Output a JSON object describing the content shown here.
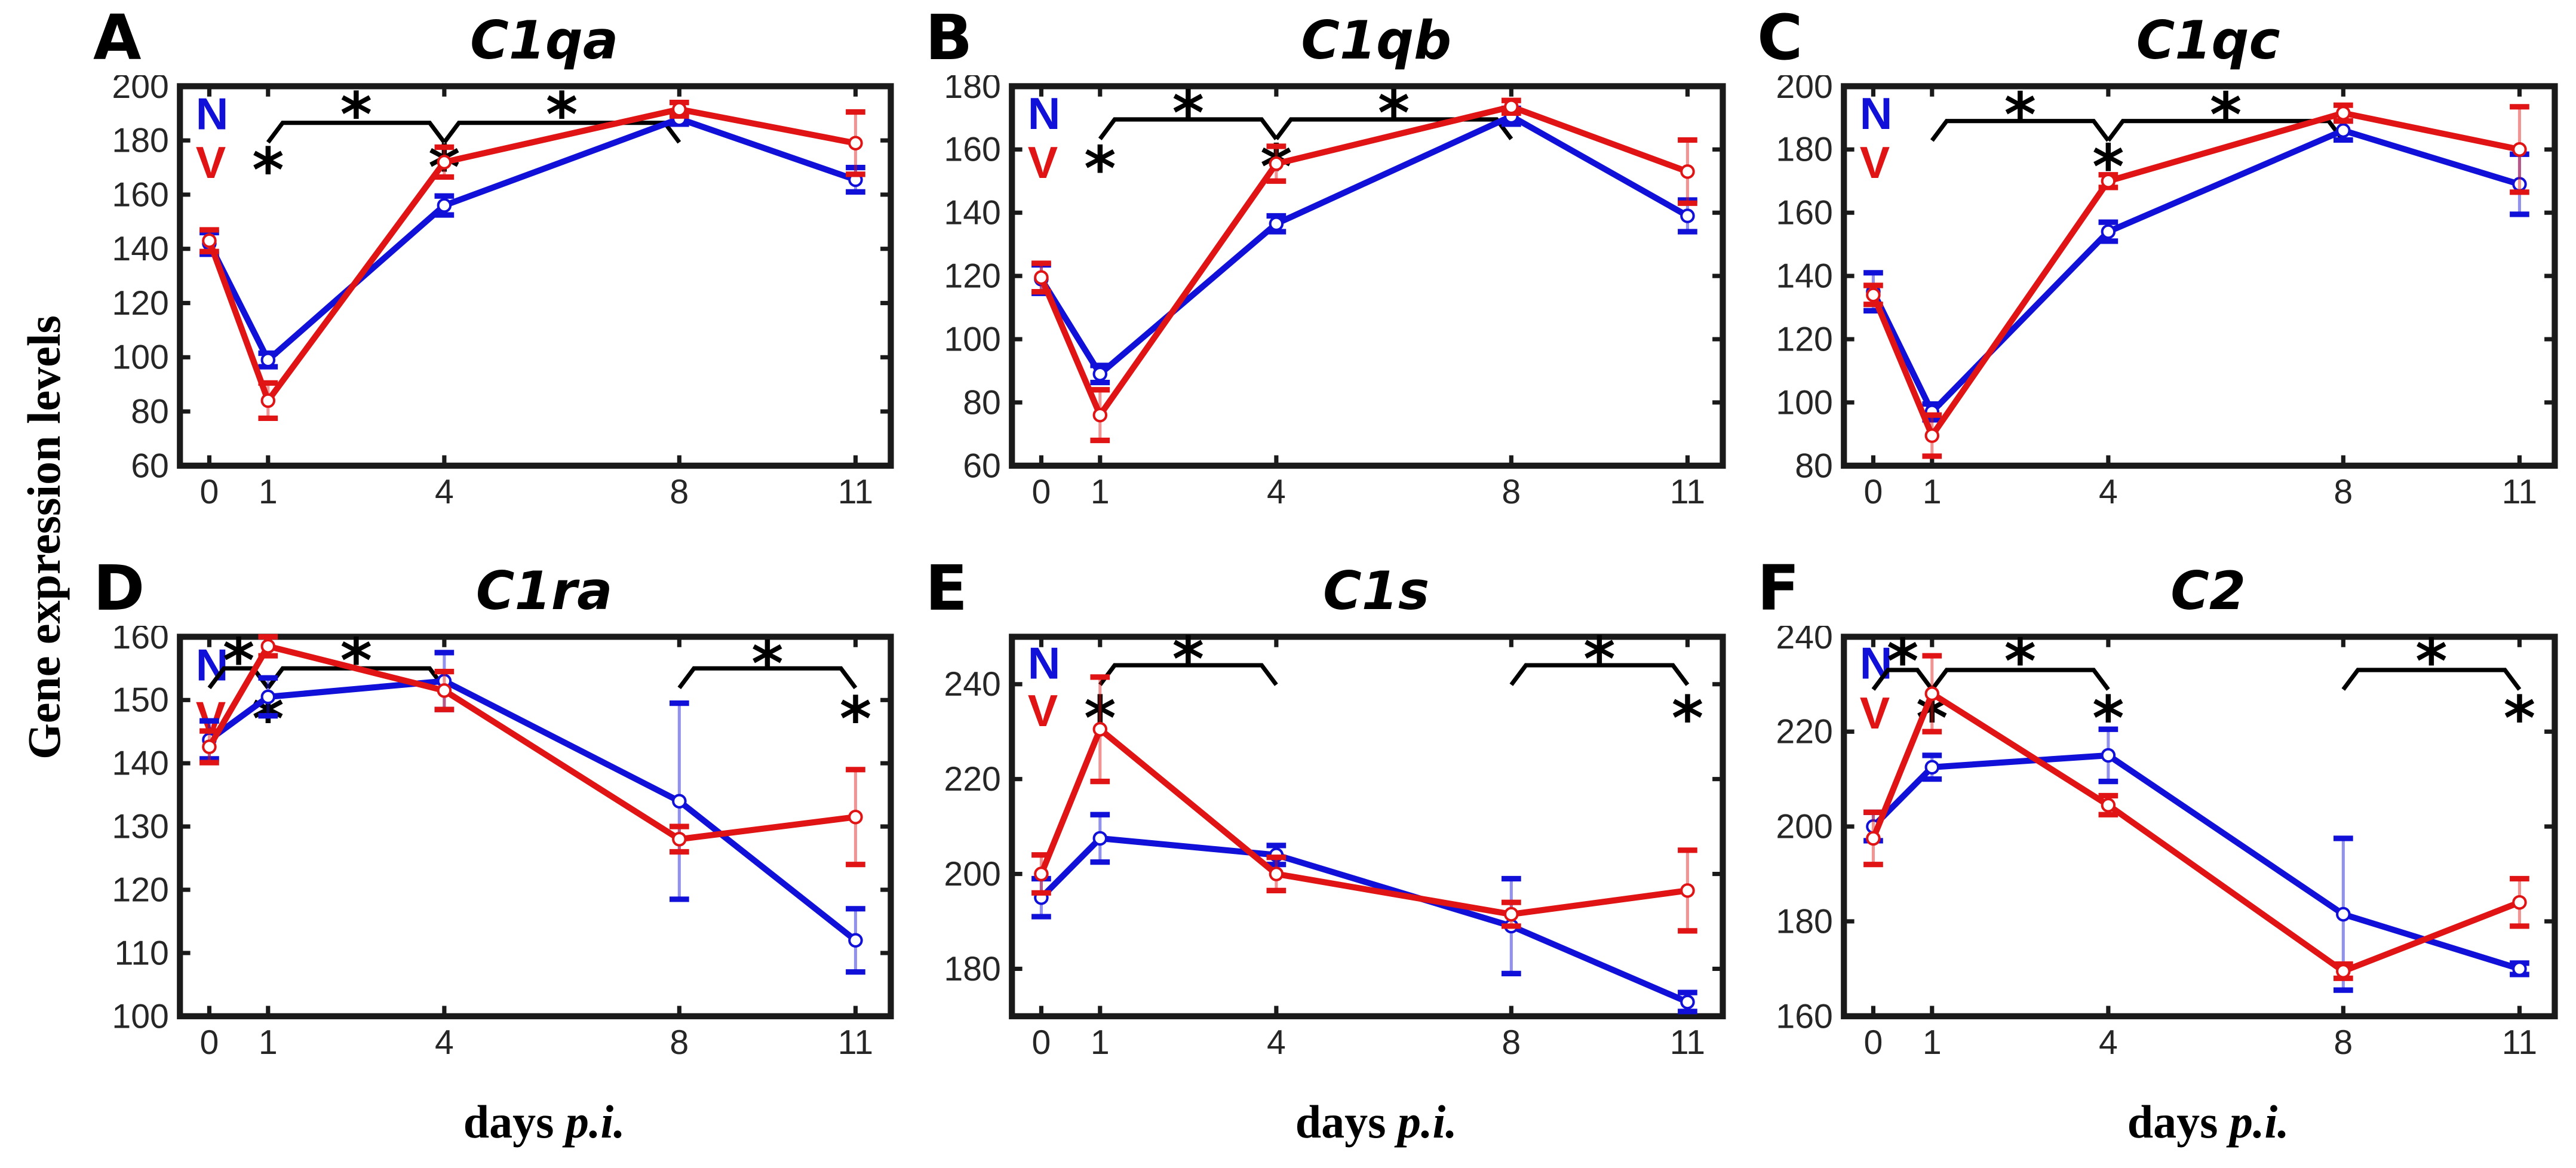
{
  "figure": {
    "ylabel": "Gene expression levels",
    "xlabel_word": "days",
    "xlabel_italic": "p.i.",
    "colors": {
      "N": "#1010d8",
      "V": "#e01414",
      "axis": "#1a1a1a",
      "tick_label": "#262626",
      "star": "#000000"
    }
  },
  "legend": {
    "entries": [
      {
        "label": "N",
        "color": "#1010d8"
      },
      {
        "label": "V",
        "color": "#e01414"
      }
    ]
  },
  "chart_data": [
    {
      "type": "line",
      "letter": "A",
      "title": "C1qa",
      "x": [
        0,
        1,
        4,
        8,
        11
      ],
      "xticklabels": [
        "0",
        "1",
        "4",
        "8",
        "11"
      ],
      "xlim": [
        -0.5,
        11.6
      ],
      "ylim": [
        60,
        200
      ],
      "yticks": [
        60,
        80,
        100,
        120,
        140,
        160,
        180,
        200
      ],
      "series": [
        {
          "name": "N",
          "color": "#1010d8",
          "values": [
            142,
            99,
            156,
            188,
            165.5
          ],
          "err": [
            4,
            2.5,
            3.5,
            2,
            4.5
          ]
        },
        {
          "name": "V",
          "color": "#e01414",
          "values": [
            143,
            84,
            172,
            191.5,
            179
          ],
          "err": [
            4,
            6.5,
            5.5,
            2.5,
            11.5
          ]
        }
      ],
      "sig_brackets": [
        {
          "x1": 1,
          "x2": 4,
          "y": 186.5
        },
        {
          "x1": 4,
          "x2": 8,
          "y": 186.5
        }
      ],
      "stars": [
        {
          "x": 2.5,
          "y": 192.5
        },
        {
          "x": 6,
          "y": 192.5
        },
        {
          "x": 1,
          "y": 172
        },
        {
          "x": 4,
          "y": 173
        }
      ],
      "legend_y": [
        190,
        172
      ],
      "show_xlabel": false
    },
    {
      "type": "line",
      "letter": "B",
      "title": "C1qb",
      "x": [
        0,
        1,
        4,
        8,
        11
      ],
      "xticklabels": [
        "0",
        "1",
        "4",
        "8",
        "11"
      ],
      "xlim": [
        -0.5,
        11.6
      ],
      "ylim": [
        60,
        180
      ],
      "yticks": [
        60,
        80,
        100,
        120,
        140,
        160,
        180
      ],
      "series": [
        {
          "name": "N",
          "color": "#1010d8",
          "values": [
            119,
            89,
            136.5,
            170.5,
            139
          ],
          "err": [
            4.5,
            2.7,
            2.5,
            2.5,
            5
          ]
        },
        {
          "name": "V",
          "color": "#e01414",
          "values": [
            119.5,
            76,
            155.5,
            173.5,
            153
          ],
          "err": [
            4.5,
            8,
            5.5,
            2,
            10
          ]
        }
      ],
      "sig_brackets": [
        {
          "x1": 1,
          "x2": 4,
          "y": 169.5
        },
        {
          "x1": 4,
          "x2": 8,
          "y": 169.5
        }
      ],
      "stars": [
        {
          "x": 2.5,
          "y": 174
        },
        {
          "x": 6,
          "y": 174
        },
        {
          "x": 1,
          "y": 156.5
        },
        {
          "x": 4,
          "y": 157
        }
      ],
      "legend_y": [
        171.5,
        156
      ],
      "show_xlabel": false
    },
    {
      "type": "line",
      "letter": "C",
      "title": "C1qc",
      "x": [
        0,
        1,
        4,
        8,
        11
      ],
      "xticklabels": [
        "0",
        "1",
        "4",
        "8",
        "11"
      ],
      "xlim": [
        -0.5,
        11.6
      ],
      "ylim": [
        80,
        200
      ],
      "yticks": [
        80,
        100,
        120,
        140,
        160,
        180,
        200
      ],
      "series": [
        {
          "name": "N",
          "color": "#1010d8",
          "values": [
            135,
            97,
            154,
            186,
            169
          ],
          "err": [
            6,
            2.5,
            3,
            3,
            9.5
          ]
        },
        {
          "name": "V",
          "color": "#e01414",
          "values": [
            134,
            89.5,
            170,
            191.5,
            180
          ],
          "err": [
            3,
            6.5,
            2,
            2.5,
            13.5
          ]
        }
      ],
      "sig_brackets": [
        {
          "x1": 1,
          "x2": 4,
          "y": 189
        },
        {
          "x1": 4,
          "x2": 8,
          "y": 189
        }
      ],
      "stars": [
        {
          "x": 2.5,
          "y": 193.5
        },
        {
          "x": 6,
          "y": 193.5
        },
        {
          "x": 4,
          "y": 177
        }
      ],
      "legend_y": [
        191.5,
        176
      ],
      "show_xlabel": false
    },
    {
      "type": "line",
      "letter": "D",
      "title": "C1ra",
      "x": [
        0,
        1,
        4,
        8,
        11
      ],
      "xticklabels": [
        "0",
        "1",
        "4",
        "8",
        "11"
      ],
      "xlim": [
        -0.5,
        11.6
      ],
      "ylim": [
        100,
        160
      ],
      "yticks": [
        100,
        110,
        120,
        130,
        140,
        150,
        160
      ],
      "series": [
        {
          "name": "N",
          "color": "#1010d8",
          "values": [
            143.7,
            150.5,
            153,
            134,
            112
          ],
          "err": [
            3,
            3,
            4.5,
            15.5,
            5
          ]
        },
        {
          "name": "V",
          "color": "#e01414",
          "values": [
            142.6,
            158.5,
            151.5,
            128,
            131.5
          ],
          "err": [
            2.5,
            1.5,
            3,
            2,
            7.5
          ]
        }
      ],
      "sig_brackets": [
        {
          "x1": 0,
          "x2": 1,
          "y": 155
        },
        {
          "x1": 1,
          "x2": 4,
          "y": 155
        },
        {
          "x1": 8,
          "x2": 11,
          "y": 155
        }
      ],
      "stars": [
        {
          "x": 0.5,
          "y": 157.5
        },
        {
          "x": 2.5,
          "y": 157.5
        },
        {
          "x": 9.5,
          "y": 157
        },
        {
          "x": 1,
          "y": 148.3
        },
        {
          "x": 11,
          "y": 148.3
        }
      ],
      "legend_y": [
        155.6,
        147.3
      ],
      "show_xlabel": true
    },
    {
      "type": "line",
      "letter": "E",
      "title": "C1s",
      "x": [
        0,
        1,
        4,
        8,
        11
      ],
      "xticklabels": [
        "0",
        "1",
        "4",
        "8",
        "11"
      ],
      "xlim": [
        -0.5,
        11.6
      ],
      "ylim": [
        170,
        250
      ],
      "yticks": [
        180,
        200,
        220,
        240
      ],
      "series": [
        {
          "name": "N",
          "color": "#1010d8",
          "values": [
            195,
            207.5,
            204,
            189,
            173
          ],
          "err": [
            4,
            5,
            2,
            10,
            2
          ]
        },
        {
          "name": "V",
          "color": "#e01414",
          "values": [
            200,
            230.5,
            200,
            191.5,
            196.5
          ],
          "err": [
            4,
            11,
            3.5,
            2.5,
            8.5
          ]
        }
      ],
      "sig_brackets": [
        {
          "x1": 1,
          "x2": 4,
          "y": 244
        },
        {
          "x1": 8,
          "x2": 11,
          "y": 244
        }
      ],
      "stars": [
        {
          "x": 2.5,
          "y": 247
        },
        {
          "x": 9.5,
          "y": 247
        },
        {
          "x": 1,
          "y": 234.5
        },
        {
          "x": 11,
          "y": 234.5
        }
      ],
      "legend_y": [
        244.5,
        234.5
      ],
      "show_xlabel": true
    },
    {
      "type": "line",
      "letter": "F",
      "title": "C2",
      "x": [
        0,
        1,
        4,
        8,
        11
      ],
      "xticklabels": [
        "0",
        "1",
        "4",
        "8",
        "11"
      ],
      "xlim": [
        -0.5,
        11.6
      ],
      "ylim": [
        160,
        240
      ],
      "yticks": [
        160,
        180,
        200,
        220,
        240
      ],
      "series": [
        {
          "name": "N",
          "color": "#1010d8",
          "values": [
            200,
            212.5,
            215,
            181.5,
            170
          ],
          "err": [
            3,
            2.5,
            5.5,
            16,
            1.2
          ]
        },
        {
          "name": "V",
          "color": "#e01414",
          "values": [
            197.5,
            228,
            204.5,
            169.5,
            184
          ],
          "err": [
            5.5,
            8,
            2,
            1.5,
            5
          ]
        }
      ],
      "sig_brackets": [
        {
          "x1": 0,
          "x2": 1,
          "y": 233
        },
        {
          "x1": 1,
          "x2": 4,
          "y": 233
        },
        {
          "x1": 8,
          "x2": 11,
          "y": 233
        }
      ],
      "stars": [
        {
          "x": 0.5,
          "y": 236.5
        },
        {
          "x": 2.5,
          "y": 236.5
        },
        {
          "x": 9.5,
          "y": 236.5
        },
        {
          "x": 1,
          "y": 224.5
        },
        {
          "x": 4,
          "y": 224.5
        },
        {
          "x": 11,
          "y": 224.5
        }
      ],
      "legend_y": [
        234.5,
        224
      ],
      "show_xlabel": true
    }
  ]
}
